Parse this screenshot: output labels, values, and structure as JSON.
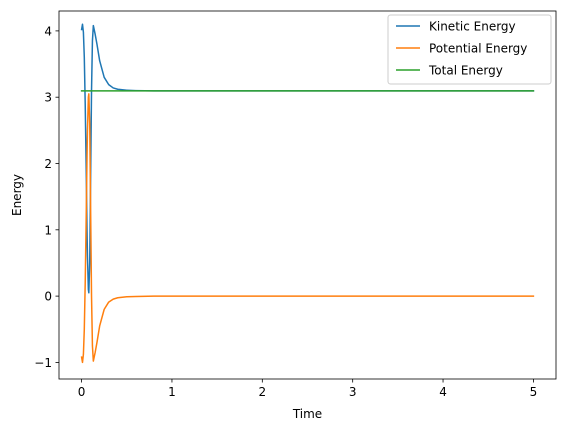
{
  "chart_data": {
    "type": "line",
    "xlabel": "Time",
    "ylabel": "Energy",
    "xlim": [
      -0.25,
      5.25
    ],
    "ylim": [
      -1.25,
      4.3
    ],
    "x_ticks": [
      0,
      1,
      2,
      3,
      4,
      5
    ],
    "y_ticks": [
      -1,
      0,
      1,
      2,
      3,
      4
    ],
    "grid": false,
    "legend_position": "top-right",
    "series": [
      {
        "name": "Kinetic Energy",
        "color": "#1f77b4",
        "x": [
          0,
          0.01,
          0.02,
          0.03,
          0.04,
          0.05,
          0.06,
          0.065,
          0.07,
          0.075,
          0.08,
          0.09,
          0.1,
          0.11,
          0.12,
          0.13,
          0.15,
          0.17,
          0.2,
          0.25,
          0.3,
          0.35,
          0.4,
          0.5,
          0.6,
          0.8,
          1.0,
          2.0,
          3.0,
          4.0,
          5.0
        ],
        "y": [
          4.02,
          4.1,
          3.98,
          3.6,
          2.9,
          2.0,
          1.0,
          0.6,
          0.35,
          0.1,
          0.05,
          0.5,
          1.8,
          3.1,
          3.85,
          4.08,
          3.95,
          3.8,
          3.55,
          3.3,
          3.19,
          3.14,
          3.12,
          3.105,
          3.1,
          3.095,
          3.095,
          3.095,
          3.095,
          3.095,
          3.095
        ]
      },
      {
        "name": "Potential Energy",
        "color": "#ff7f0e",
        "x": [
          0,
          0.01,
          0.02,
          0.03,
          0.04,
          0.05,
          0.06,
          0.065,
          0.07,
          0.075,
          0.08,
          0.09,
          0.1,
          0.11,
          0.12,
          0.13,
          0.15,
          0.17,
          0.2,
          0.25,
          0.3,
          0.35,
          0.4,
          0.5,
          0.6,
          0.8,
          1.0,
          2.0,
          3.0,
          4.0,
          5.0
        ],
        "y": [
          -0.92,
          -1.0,
          -0.88,
          -0.5,
          0.2,
          1.1,
          2.1,
          2.5,
          2.75,
          3.0,
          3.05,
          2.6,
          1.3,
          0.0,
          -0.75,
          -0.98,
          -0.85,
          -0.7,
          -0.45,
          -0.2,
          -0.09,
          -0.045,
          -0.025,
          -0.01,
          -0.005,
          0.0,
          0.0,
          0.0,
          0.0,
          0.0,
          0.0
        ]
      },
      {
        "name": "Total Energy",
        "color": "#2ca02c",
        "x": [
          0,
          5.0
        ],
        "y": [
          3.095,
          3.095
        ]
      }
    ]
  }
}
